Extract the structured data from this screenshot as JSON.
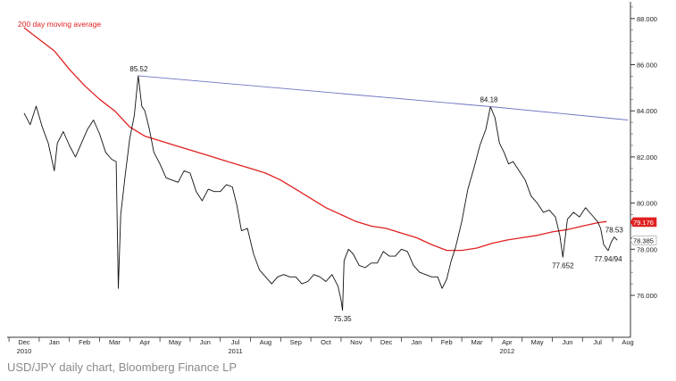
{
  "caption": "USD/JPY daily chart, Bloomberg Finance LP",
  "chart_data": {
    "type": "line",
    "title": "",
    "xlabel": "",
    "ylabel": "",
    "ylim": [
      74.2,
      89.2
    ],
    "y_ticks": [
      "76.000",
      "78.000",
      "80.000",
      "82.000",
      "84.000",
      "86.000",
      "88.000"
    ],
    "y_tick_values": [
      76,
      78,
      80,
      82,
      84,
      86,
      88
    ],
    "x_ticks": [
      "Dec",
      "Jan",
      "Feb",
      "Mar",
      "Apr",
      "May",
      "Jun",
      "Jul",
      "Aug",
      "Sep",
      "Oct",
      "Nov",
      "Dec",
      "Jan",
      "Feb",
      "Mar",
      "Apr",
      "May",
      "Jun",
      "Jul",
      "Aug"
    ],
    "x_tick_index": [
      0,
      1,
      2,
      3,
      4,
      5,
      6,
      7,
      8,
      9,
      10,
      11,
      12,
      13,
      14,
      15,
      16,
      17,
      18,
      19,
      20
    ],
    "year_labels": [
      {
        "label": "2010",
        "month_index": 0
      },
      {
        "label": "2011",
        "month_index": 7
      },
      {
        "label": "2012",
        "month_index": 16
      }
    ],
    "grid": false,
    "legend": "top-left",
    "series": [
      {
        "name": "200 day moving average",
        "color": "#e02020",
        "points": [
          [
            0,
            87.6
          ],
          [
            0.5,
            87.1
          ],
          [
            1,
            86.6
          ],
          [
            1.5,
            85.8
          ],
          [
            2,
            85.1
          ],
          [
            2.5,
            84.5
          ],
          [
            3,
            84.0
          ],
          [
            3.5,
            83.3
          ],
          [
            4,
            82.9
          ],
          [
            4.5,
            82.7
          ],
          [
            5,
            82.5
          ],
          [
            5.5,
            82.3
          ],
          [
            6,
            82.1
          ],
          [
            6.5,
            81.9
          ],
          [
            7,
            81.7
          ],
          [
            7.5,
            81.5
          ],
          [
            8,
            81.3
          ],
          [
            8.5,
            81.0
          ],
          [
            9,
            80.6
          ],
          [
            9.5,
            80.2
          ],
          [
            10,
            79.8
          ],
          [
            10.5,
            79.5
          ],
          [
            11,
            79.2
          ],
          [
            11.5,
            79.0
          ],
          [
            12,
            78.9
          ],
          [
            12.5,
            78.7
          ],
          [
            13,
            78.5
          ],
          [
            13.5,
            78.2
          ],
          [
            14,
            77.95
          ],
          [
            14.5,
            77.95
          ],
          [
            15,
            78.05
          ],
          [
            15.5,
            78.25
          ],
          [
            16,
            78.4
          ],
          [
            16.5,
            78.5
          ],
          [
            17,
            78.6
          ],
          [
            17.5,
            78.75
          ],
          [
            18,
            78.85
          ],
          [
            18.5,
            79.0
          ],
          [
            19,
            79.15
          ],
          [
            19.3,
            79.2
          ]
        ]
      },
      {
        "name": "USD/JPY",
        "color": "#111111",
        "points": [
          [
            0,
            83.9
          ],
          [
            0.2,
            83.4
          ],
          [
            0.4,
            84.2
          ],
          [
            0.6,
            83.3
          ],
          [
            0.8,
            82.6
          ],
          [
            1,
            81.4
          ],
          [
            1.1,
            82.6
          ],
          [
            1.3,
            83.1
          ],
          [
            1.5,
            82.5
          ],
          [
            1.7,
            82.0
          ],
          [
            1.9,
            82.6
          ],
          [
            2.1,
            83.2
          ],
          [
            2.3,
            83.6
          ],
          [
            2.5,
            83.0
          ],
          [
            2.7,
            82.2
          ],
          [
            2.9,
            81.9
          ],
          [
            3.05,
            81.8
          ],
          [
            3.12,
            76.3
          ],
          [
            3.2,
            79.5
          ],
          [
            3.35,
            81.2
          ],
          [
            3.5,
            82.8
          ],
          [
            3.65,
            83.8
          ],
          [
            3.78,
            85.52
          ],
          [
            3.9,
            84.2
          ],
          [
            4,
            84.0
          ],
          [
            4.15,
            83.2
          ],
          [
            4.3,
            82.2
          ],
          [
            4.5,
            81.7
          ],
          [
            4.7,
            81.1
          ],
          [
            4.9,
            81.0
          ],
          [
            5.1,
            80.9
          ],
          [
            5.3,
            81.4
          ],
          [
            5.5,
            81.3
          ],
          [
            5.7,
            80.5
          ],
          [
            5.9,
            80.1
          ],
          [
            6.1,
            80.6
          ],
          [
            6.3,
            80.5
          ],
          [
            6.5,
            80.5
          ],
          [
            6.7,
            80.8
          ],
          [
            6.9,
            80.7
          ],
          [
            7.05,
            79.9
          ],
          [
            7.2,
            78.8
          ],
          [
            7.4,
            78.9
          ],
          [
            7.6,
            77.8
          ],
          [
            7.8,
            77.1
          ],
          [
            8,
            76.8
          ],
          [
            8.2,
            76.5
          ],
          [
            8.4,
            76.8
          ],
          [
            8.6,
            76.9
          ],
          [
            8.8,
            76.8
          ],
          [
            9,
            76.8
          ],
          [
            9.2,
            76.5
          ],
          [
            9.4,
            76.6
          ],
          [
            9.6,
            76.9
          ],
          [
            9.8,
            76.8
          ],
          [
            10,
            76.6
          ],
          [
            10.2,
            76.9
          ],
          [
            10.4,
            76.4
          ],
          [
            10.5,
            75.8
          ],
          [
            10.55,
            75.35
          ],
          [
            10.6,
            77.5
          ],
          [
            10.75,
            78.0
          ],
          [
            10.9,
            77.8
          ],
          [
            11.1,
            77.3
          ],
          [
            11.3,
            77.2
          ],
          [
            11.5,
            77.4
          ],
          [
            11.7,
            77.4
          ],
          [
            11.9,
            77.9
          ],
          [
            12.1,
            77.7
          ],
          [
            12.3,
            77.7
          ],
          [
            12.5,
            78.0
          ],
          [
            12.7,
            77.9
          ],
          [
            12.9,
            77.3
          ],
          [
            13.1,
            77.0
          ],
          [
            13.3,
            76.9
          ],
          [
            13.5,
            76.8
          ],
          [
            13.7,
            76.8
          ],
          [
            13.85,
            76.3
          ],
          [
            14,
            76.7
          ],
          [
            14.15,
            77.5
          ],
          [
            14.3,
            78.1
          ],
          [
            14.5,
            79.2
          ],
          [
            14.7,
            80.6
          ],
          [
            14.9,
            81.5
          ],
          [
            15.1,
            82.5
          ],
          [
            15.3,
            83.2
          ],
          [
            15.45,
            84.18
          ],
          [
            15.6,
            83.7
          ],
          [
            15.75,
            82.6
          ],
          [
            15.9,
            82.2
          ],
          [
            16.05,
            81.7
          ],
          [
            16.2,
            81.8
          ],
          [
            16.4,
            81.4
          ],
          [
            16.6,
            81.0
          ],
          [
            16.8,
            80.3
          ],
          [
            17,
            80.0
          ],
          [
            17.2,
            79.6
          ],
          [
            17.4,
            79.7
          ],
          [
            17.6,
            79.4
          ],
          [
            17.75,
            78.6
          ],
          [
            17.85,
            77.652
          ],
          [
            18,
            79.3
          ],
          [
            18.2,
            79.6
          ],
          [
            18.4,
            79.4
          ],
          [
            18.6,
            79.8
          ],
          [
            18.8,
            79.5
          ],
          [
            19,
            79.2
          ],
          [
            19.1,
            78.9
          ],
          [
            19.2,
            78.2
          ],
          [
            19.35,
            77.94
          ],
          [
            19.45,
            78.3
          ],
          [
            19.55,
            78.53
          ],
          [
            19.65,
            78.39
          ]
        ]
      },
      {
        "name": "",
        "color": "#6f74c2",
        "points": [
          [
            3.78,
            85.52
          ],
          [
            15.45,
            84.18
          ],
          [
            20,
            83.6
          ]
        ]
      }
    ],
    "annotations": [
      {
        "text": "85.52",
        "x": 3.8,
        "y": 85.52
      },
      {
        "text": "84.18",
        "x": 15.4,
        "y": 84.18
      },
      {
        "text": "75.35",
        "x": 10.55,
        "y": 75.35
      },
      {
        "text": "77.652",
        "x": 17.85,
        "y": 77.652
      },
      {
        "text": "78.53",
        "x": 19.55,
        "y": 78.53
      },
      {
        "text": "77.94/94",
        "x": 19.35,
        "y": 77.94
      }
    ],
    "last_value_tags": [
      {
        "text": "79.176",
        "y": 79.176,
        "bg": "#e02020",
        "fg": "#ffffff"
      },
      {
        "text": "78.385",
        "y": 78.385,
        "bg": "#ffffff",
        "fg": "#111111"
      }
    ]
  }
}
